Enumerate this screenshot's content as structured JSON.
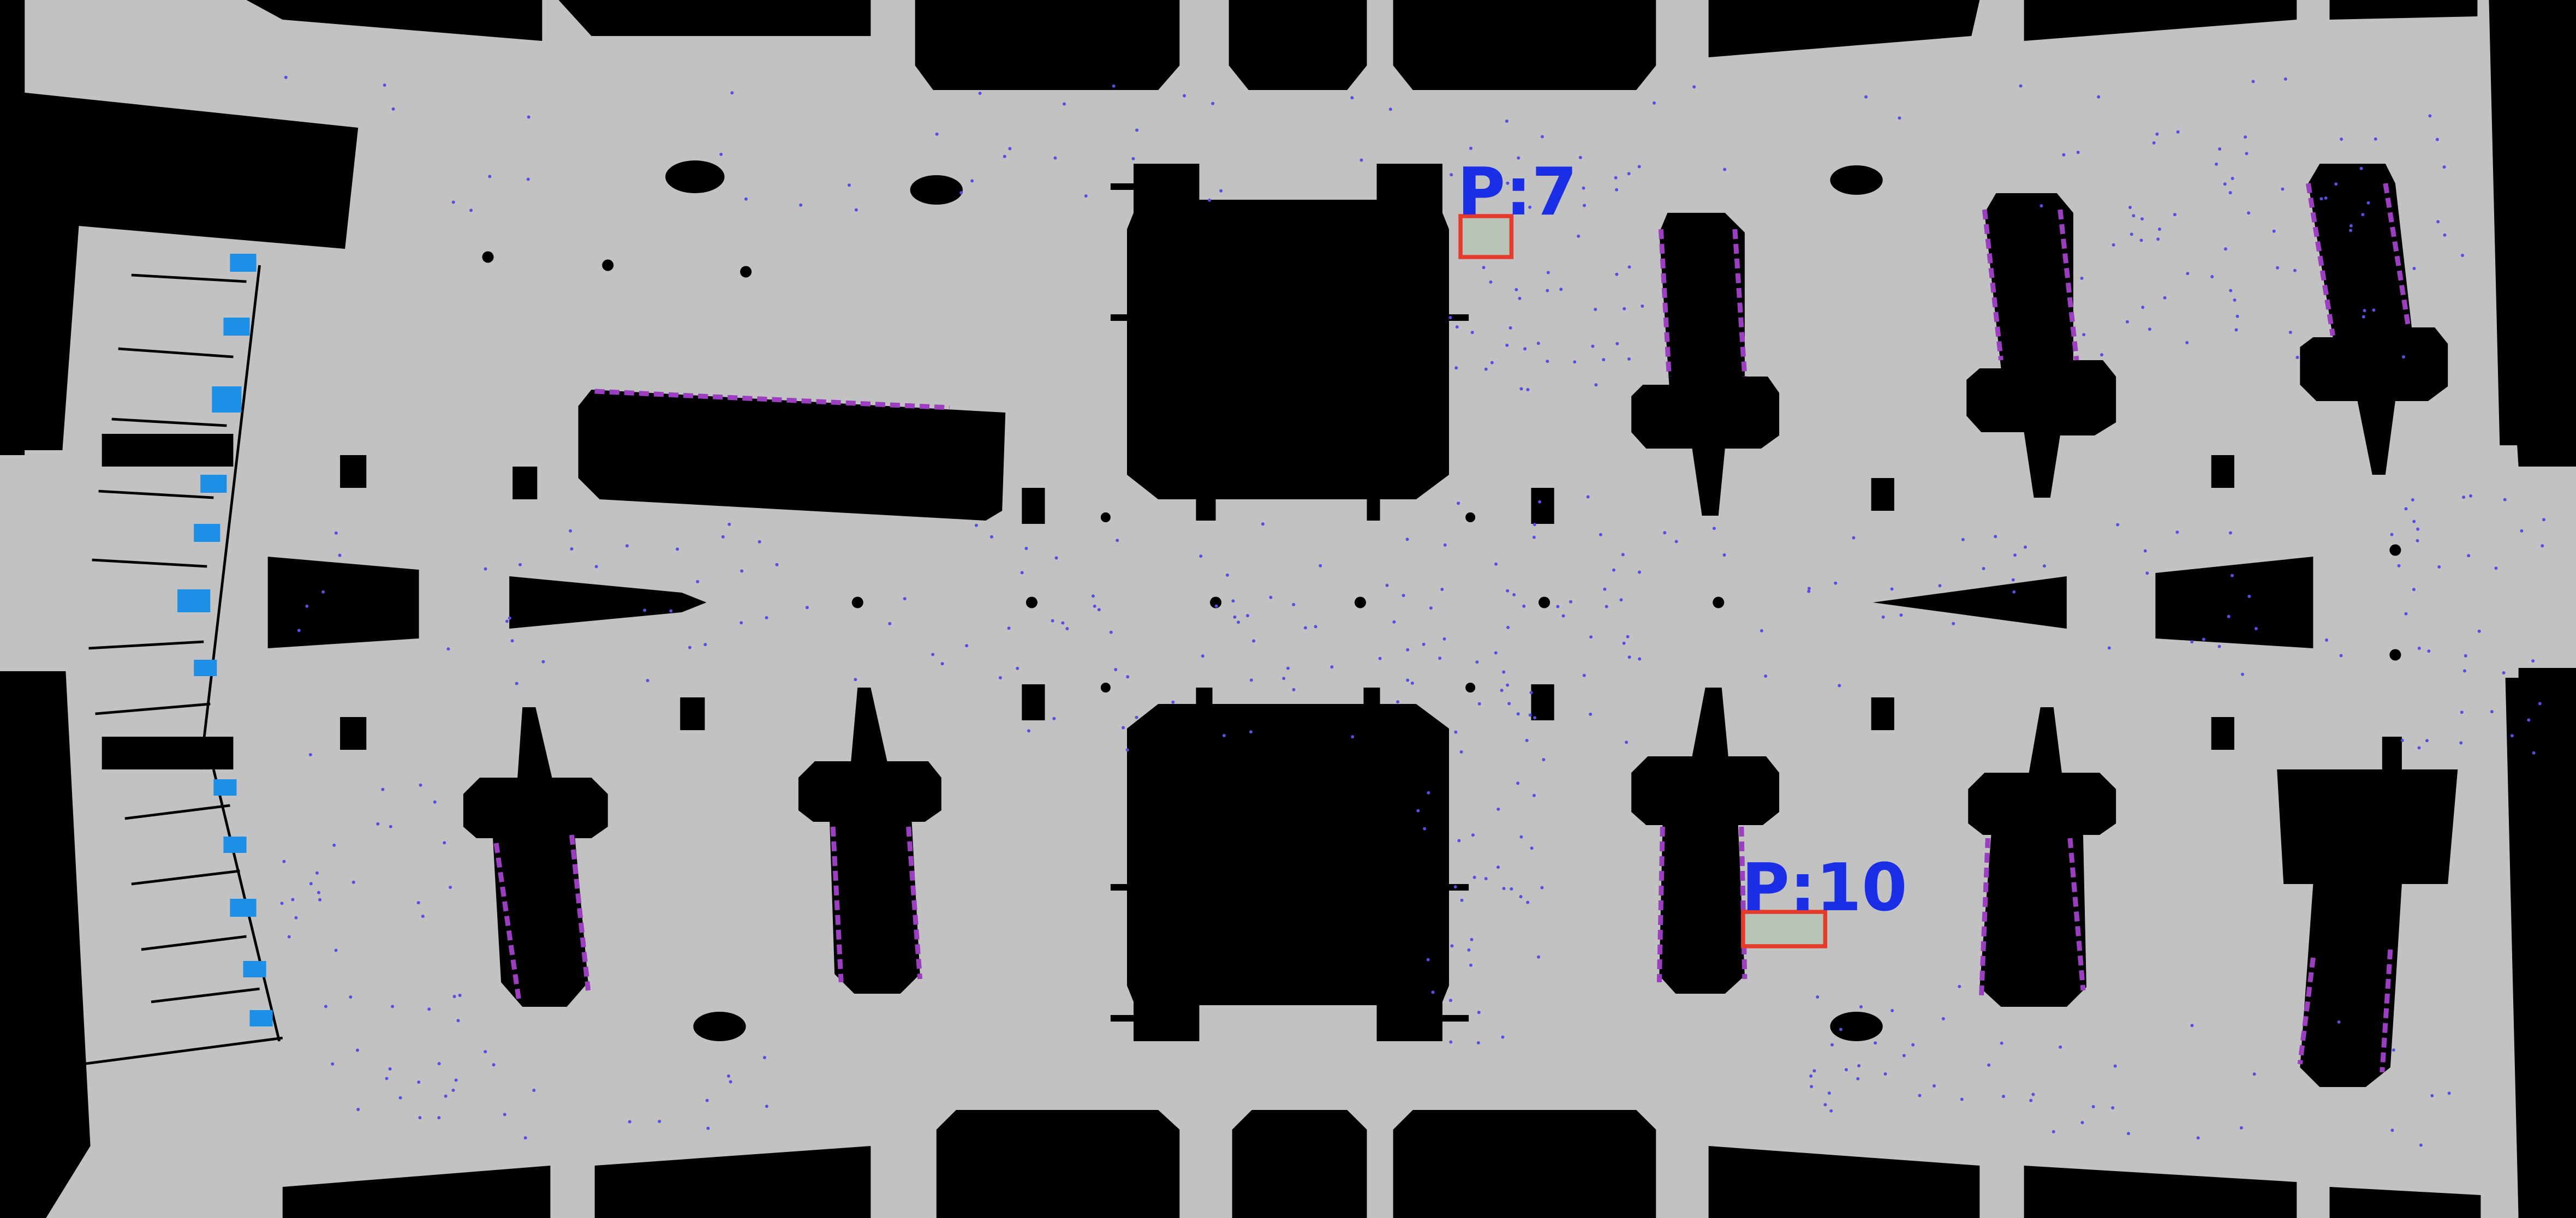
{
  "map": {
    "colors": {
      "background": "#000000",
      "floor": "#c2c2c2",
      "obstacle": "#000000",
      "scan_points": "#5a4ee0",
      "edge_markers": "#9b3ec0",
      "gate_markers": "#1e8fe6",
      "highlight_box": "#e63a2a",
      "label_text": "#1a2ee6",
      "box_fill": "#b8c4b8"
    },
    "annotations": [
      {
        "id": "p7",
        "label": "P:7"
      },
      {
        "id": "p10",
        "label": "P:10"
      }
    ]
  }
}
